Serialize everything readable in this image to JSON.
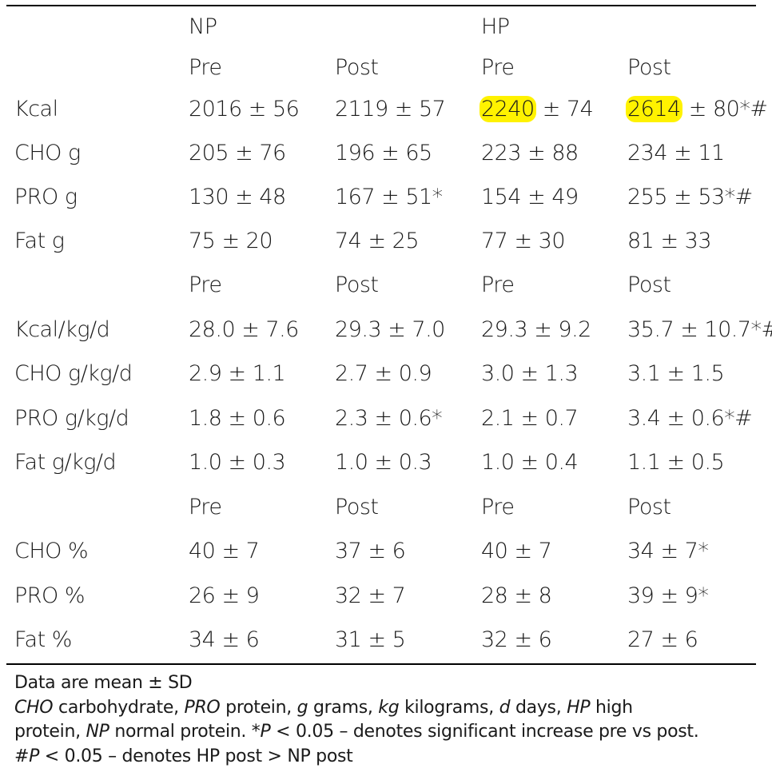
{
  "header": {
    "group_np": "NP",
    "group_hp": "HP",
    "col_pre": "Pre",
    "col_post": "Post"
  },
  "subheaders": {
    "pre": "Pre",
    "post": "Post"
  },
  "rows": [
    {
      "label": "Kcal",
      "np_pre": "2016 ± 56",
      "np_post": "2119 ± 57",
      "hp_pre_highlight": "2240",
      "hp_pre_rest": " ± 74",
      "hp_post_highlight": "2614",
      "hp_post_rest": " ± 80*#"
    },
    {
      "label": "CHO g",
      "np_pre": "205 ± 76",
      "np_post": "196 ± 65",
      "hp_pre": "223 ± 88",
      "hp_post": "234 ± 11"
    },
    {
      "label": "PRO g",
      "np_pre": "130 ± 48",
      "np_post": "167 ± 51*",
      "hp_pre": "154 ± 49",
      "hp_post": "255 ± 53*#"
    },
    {
      "label": "Fat g",
      "np_pre": "75 ± 20",
      "np_post": "74 ± 25",
      "hp_pre": "77 ± 30",
      "hp_post": "81 ± 33"
    },
    {
      "label": "Kcal/kg/d",
      "np_pre": "28.0 ± 7.6",
      "np_post": "29.3 ± 7.0",
      "hp_pre": "29.3 ± 9.2",
      "hp_post": "35.7 ± 10.7*#"
    },
    {
      "label": "CHO g/kg/d",
      "np_pre": "2.9 ± 1.1",
      "np_post": "2.7 ± 0.9",
      "hp_pre": "3.0 ± 1.3",
      "hp_post": "3.1 ± 1.5"
    },
    {
      "label": "PRO g/kg/d",
      "np_pre": "1.8 ± 0.6",
      "np_post": "2.3 ± 0.6*",
      "hp_pre": "2.1 ± 0.7",
      "hp_post": "3.4 ± 0.6*#"
    },
    {
      "label": "Fat g/kg/d",
      "np_pre": "1.0 ± 0.3",
      "np_post": "1.0 ± 0.3",
      "hp_pre": "1.0 ± 0.4",
      "hp_post": "1.1 ± 0.5"
    },
    {
      "label": "CHO %",
      "np_pre": "40 ± 7",
      "np_post": "37 ± 6",
      "hp_pre": "40 ± 7",
      "hp_post": "34 ± 7*"
    },
    {
      "label": "PRO %",
      "np_pre": "26 ± 9",
      "np_post": "32 ± 7",
      "hp_pre": "28 ± 8",
      "hp_post": "39 ± 9*"
    },
    {
      "label": "Fat %",
      "np_pre": "34 ± 6",
      "np_post": "31 ± 5",
      "hp_pre": "32 ± 6",
      "hp_post": "27 ± 6"
    }
  ],
  "highlight_color": "#fff200",
  "notes": {
    "line1": "Data are mean ± SD",
    "abbr": [
      {
        "term": "CHO",
        "def": " carbohydrate, "
      },
      {
        "term": "PRO",
        "def": " protein, "
      },
      {
        "term": "g",
        "def": " grams, "
      },
      {
        "term": "kg",
        "def": " kilograms, "
      },
      {
        "term": "d",
        "def": " days, "
      },
      {
        "term": "HP",
        "def": " high"
      }
    ],
    "line3_prefix": "protein, ",
    "line3_term": "NP",
    "line3_mid": " normal protein. *",
    "line3_p": "P",
    "line3_rest": " < 0.05 – denotes significant increase pre vs post.",
    "line4_prefix": "#",
    "line4_p": "P",
    "line4_rest": " < 0.05 – denotes HP post > NP post"
  }
}
